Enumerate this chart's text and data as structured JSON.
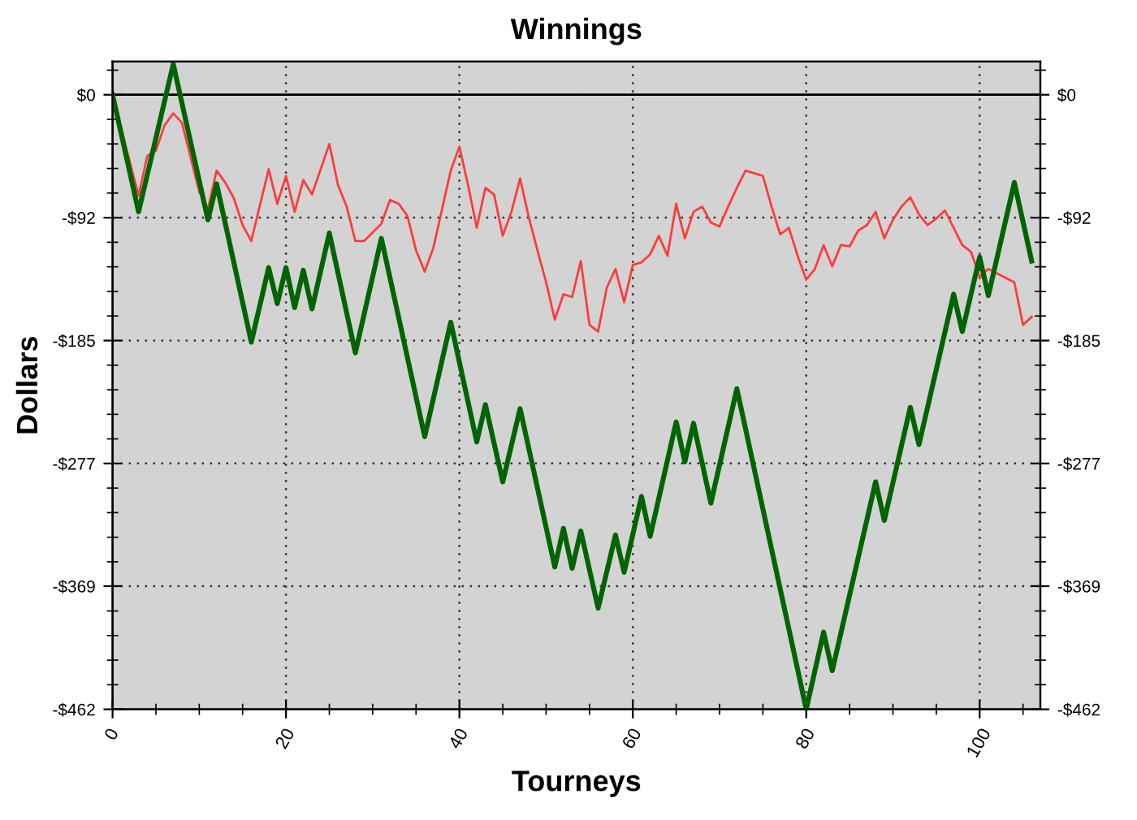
{
  "chart_data": {
    "type": "line",
    "title": "Winnings",
    "xlabel": "Tourneys",
    "ylabel": "Dollars",
    "xlim": [
      0,
      107
    ],
    "xticks": [
      0,
      20,
      40,
      60,
      80,
      100
    ],
    "ylim": [
      -462,
      25
    ],
    "yticks": [
      {
        "value": 0,
        "label": "$0"
      },
      {
        "value": -92.4,
        "label": "-$92"
      },
      {
        "value": -184.8,
        "label": "-$185"
      },
      {
        "value": -277.2,
        "label": "-$277"
      },
      {
        "value": -369.4,
        "label": "-$369"
      },
      {
        "value": -462,
        "label": "-$462"
      }
    ],
    "y2lim": [
      -462,
      25
    ],
    "y2ticks": [
      {
        "value": 0,
        "label": "$0"
      },
      {
        "value": -92.4,
        "label": "-$92"
      },
      {
        "value": -184.8,
        "label": "-$185"
      },
      {
        "value": -277.2,
        "label": "-$277"
      },
      {
        "value": -369.4,
        "label": "-$369"
      },
      {
        "value": -462,
        "label": "-$462"
      }
    ],
    "grid": true,
    "legend": false,
    "marker": "none",
    "line_style": "solid",
    "ref_lines": [
      {
        "axis": "y",
        "value": 0,
        "color": "#000000",
        "line_style": "solid"
      }
    ],
    "series": [
      {
        "color": "#ff3b3b",
        "x": [
          0,
          3,
          4,
          5,
          6,
          7,
          8,
          10,
          11,
          12,
          13,
          14,
          15,
          16,
          18,
          19,
          20,
          21,
          22,
          23,
          25,
          26,
          27,
          28,
          29,
          31,
          32,
          33,
          34,
          35,
          36,
          37,
          39,
          40,
          41,
          42,
          43,
          44,
          45,
          46,
          47,
          48,
          49,
          50,
          51,
          52,
          53,
          54,
          55,
          56,
          57,
          58,
          59,
          60,
          61,
          62,
          63,
          64,
          65,
          66,
          67,
          68,
          69,
          70,
          71,
          72,
          73,
          74,
          75,
          76,
          77,
          78,
          79,
          80,
          81,
          82,
          83,
          84,
          85,
          86,
          87,
          88,
          89,
          90,
          91,
          92,
          93,
          94,
          95,
          96,
          97,
          98,
          99,
          100,
          101,
          104,
          105,
          106
        ],
        "values": [
          0,
          -76,
          -46,
          -42,
          -23,
          -14,
          -21,
          -73,
          -86,
          -57,
          -66,
          -78,
          -98,
          -110,
          -56,
          -82,
          -61,
          -88,
          -64,
          -75,
          -37,
          -68,
          -84,
          -110,
          -110,
          -97,
          -79,
          -82,
          -91,
          -117,
          -133,
          -115,
          -57,
          -39,
          -68,
          -100,
          -70,
          -75,
          -106,
          -88,
          -63,
          -92,
          -117,
          -141,
          -169,
          -150,
          -152,
          -125,
          -173,
          -178,
          -145,
          -131,
          -156,
          -128,
          -126,
          -120,
          -106,
          -121,
          -82,
          -108,
          -88,
          -84,
          -96,
          -99,
          -84,
          -70,
          -57,
          -59,
          -61,
          -84,
          -105,
          -100,
          -121,
          -139,
          -131,
          -113,
          -129,
          -113,
          -114,
          -102,
          -98,
          -88,
          -108,
          -94,
          -84,
          -77,
          -90,
          -98,
          -93,
          -87,
          -100,
          -113,
          -118,
          -137,
          -131,
          -141,
          -173,
          -167
        ]
      },
      {
        "color": "#006400",
        "x": [
          0,
          3,
          7,
          11,
          12,
          16,
          18,
          19,
          20,
          21,
          22,
          23,
          25,
          28,
          31,
          36,
          39,
          42,
          43,
          45,
          47,
          51,
          52,
          53,
          54,
          56,
          58,
          59,
          61,
          62,
          65,
          66,
          67,
          69,
          72,
          80,
          82,
          83,
          88,
          89,
          92,
          93,
          97,
          98,
          100,
          101,
          104,
          106
        ],
        "values": [
          0,
          -88,
          23,
          -94,
          -67,
          -186,
          -130,
          -157,
          -130,
          -160,
          -132,
          -161,
          -104,
          -194,
          -108,
          -257,
          -171,
          -261,
          -233,
          -291,
          -236,
          -355,
          -326,
          -356,
          -328,
          -386,
          -331,
          -359,
          -302,
          -332,
          -246,
          -276,
          -247,
          -307,
          -221,
          -462,
          -404,
          -433,
          -291,
          -320,
          -235,
          -263,
          -150,
          -178,
          -122,
          -151,
          -66,
          -125
        ]
      }
    ]
  }
}
